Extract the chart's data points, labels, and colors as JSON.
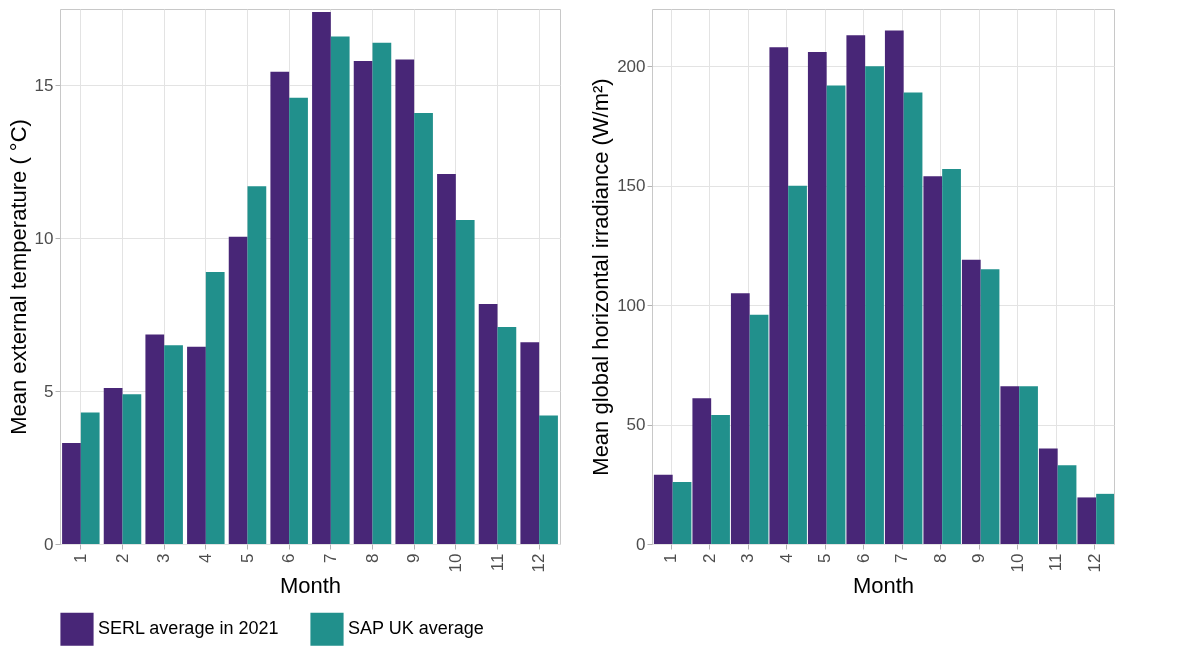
{
  "chart_data": [
    {
      "type": "bar",
      "xlabel": "Month",
      "ylabel": "Mean external temperature ( °C)",
      "categories": [
        "1",
        "2",
        "3",
        "4",
        "5",
        "6",
        "7",
        "8",
        "9",
        "10",
        "11",
        "12"
      ],
      "ylim": [
        0,
        17.5
      ],
      "yticks": [
        0,
        5,
        10,
        15
      ],
      "grid": true,
      "legend": "bottom",
      "series": [
        {
          "name": "SERL average in 2021",
          "color": "#482677",
          "values": [
            3.3,
            5.1,
            6.85,
            6.45,
            10.05,
            15.45,
            17.4,
            15.8,
            15.85,
            12.1,
            7.85,
            6.6
          ]
        },
        {
          "name": "SAP UK average",
          "color": "#21908c",
          "values": [
            4.3,
            4.9,
            6.5,
            8.9,
            11.7,
            14.6,
            16.6,
            16.4,
            14.1,
            10.6,
            7.1,
            4.2
          ]
        }
      ]
    },
    {
      "type": "bar",
      "xlabel": "Month",
      "ylabel": "Mean global horizontal irradiance (W/m²)",
      "categories": [
        "1",
        "2",
        "3",
        "4",
        "5",
        "6",
        "7",
        "8",
        "9",
        "10",
        "11",
        "12"
      ],
      "ylim": [
        0,
        224
      ],
      "yticks": [
        0,
        50,
        100,
        150,
        200
      ],
      "grid": true,
      "legend": "bottom",
      "series": [
        {
          "name": "SERL average in 2021",
          "color": "#482677",
          "values": [
            29,
            61,
            105,
            208,
            206,
            213,
            215,
            154,
            119,
            66,
            40,
            19.5
          ]
        },
        {
          "name": "SAP UK average",
          "color": "#21908c",
          "values": [
            26,
            54,
            96,
            150,
            192,
            200,
            189,
            157,
            115,
            66,
            33,
            21
          ]
        }
      ]
    }
  ]
}
